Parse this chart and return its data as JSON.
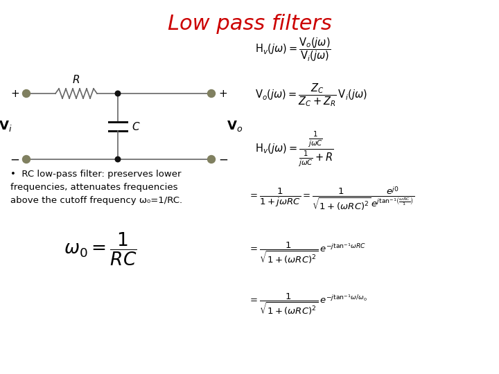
{
  "title": "Low pass filters",
  "title_color": "#CC0000",
  "title_fontsize": 22,
  "background_color": "#ffffff",
  "bullet_text": "•  RC low-pass filter: preserves lower\nfrequencies, attenuates frequencies\nabove the cutoff frequency ω₀=1/RC.",
  "wire_color": "#666666",
  "node_color": "#808060",
  "dot_color": "#111111"
}
